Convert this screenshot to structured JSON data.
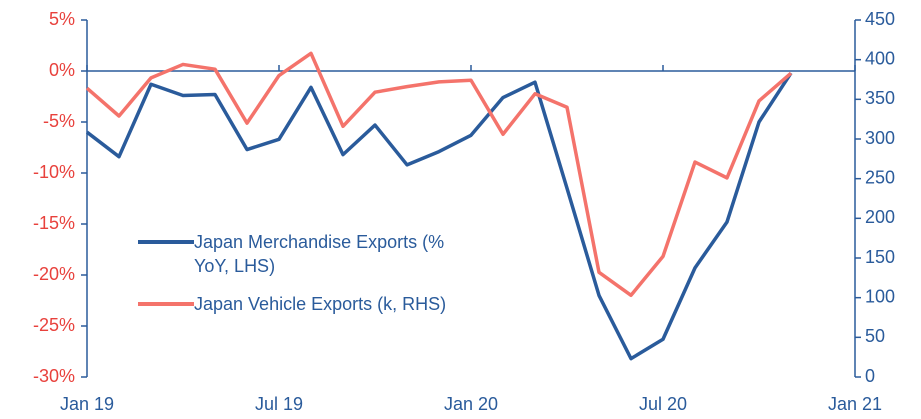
{
  "chart_data": {
    "type": "line",
    "x": [
      "2019-01",
      "2019-02",
      "2019-03",
      "2019-04",
      "2019-05",
      "2019-06",
      "2019-07",
      "2019-08",
      "2019-09",
      "2019-10",
      "2019-11",
      "2019-12",
      "2020-01",
      "2020-02",
      "2020-03",
      "2020-04",
      "2020-05",
      "2020-06",
      "2020-07",
      "2020-08",
      "2020-09",
      "2020-10",
      "2020-11"
    ],
    "xlim": [
      "2019-01",
      "2021-01"
    ],
    "xticks": [
      {
        "value": "2019-01",
        "label": "Jan 19"
      },
      {
        "value": "2019-07",
        "label": "Jul 19"
      },
      {
        "value": "2020-01",
        "label": "Jan 20"
      },
      {
        "value": "2020-07",
        "label": "Jul 20"
      },
      {
        "value": "2021-01",
        "label": "Jan 21"
      }
    ],
    "ylim": [
      -30,
      5
    ],
    "yticks": [
      {
        "value": -30,
        "label": "-30%"
      },
      {
        "value": -25,
        "label": "-25%"
      },
      {
        "value": -20,
        "label": "-20%"
      },
      {
        "value": -15,
        "label": "-15%"
      },
      {
        "value": -10,
        "label": "-10%"
      },
      {
        "value": -5,
        "label": "-5%"
      },
      {
        "value": 0,
        "label": "0%"
      },
      {
        "value": 5,
        "label": "5%"
      }
    ],
    "y2lim": [
      0,
      450
    ],
    "y2ticks": [
      0,
      50,
      100,
      150,
      200,
      250,
      300,
      350,
      400,
      450
    ],
    "ytick_color": "#e8413c",
    "y2tick_color": "#2a5b9b",
    "axis_color": "#2a5b9b",
    "series": [
      {
        "name": "Japan Merchandise Exports (% YoY, LHS)",
        "color": "#2a5b9b",
        "values": [
          -6.0,
          -8.4,
          -1.3,
          -2.4,
          -2.3,
          -7.7,
          -6.7,
          -1.6,
          -8.2,
          -5.3,
          -9.2,
          -7.9,
          -6.3,
          -2.6,
          -1.1,
          -11.5,
          -22.0,
          -28.2,
          -26.3,
          -19.3,
          -14.8,
          -5.0,
          -0.2
        ]
      },
      {
        "name": "Japan Vehicle Exports (k, RHS)",
        "color": "#f4736b",
        "axis": "y2",
        "values": [
          364,
          329,
          377,
          394,
          388,
          320,
          380,
          408,
          316,
          359,
          366,
          372,
          374,
          306,
          357,
          340,
          132,
          103,
          152,
          271,
          251,
          348,
          383
        ]
      }
    ]
  }
}
